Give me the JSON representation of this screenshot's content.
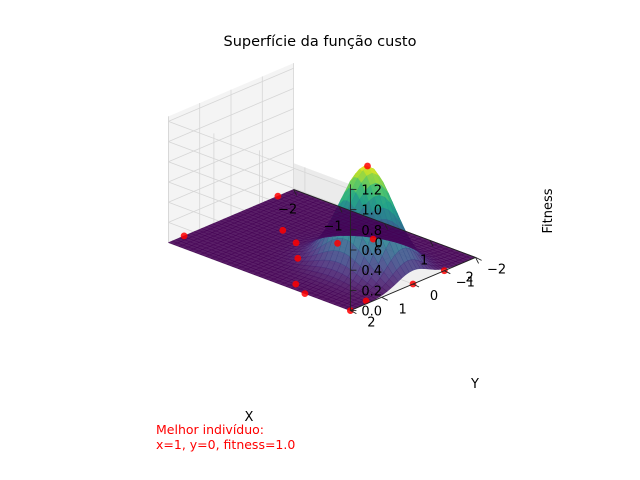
{
  "chart_data": {
    "type": "surface3d",
    "title": "Superfície da função custo",
    "xlabel": "X",
    "ylabel": "Y",
    "zlabel": "Fitness",
    "xlim": [
      -2,
      2
    ],
    "ylim": [
      -2,
      2
    ],
    "zlim": [
      0,
      1.2
    ],
    "x_ticks": [
      "−2",
      "−1",
      "0",
      "1",
      "2"
    ],
    "y_ticks": [
      "−2",
      "−1",
      "0",
      "1",
      "2"
    ],
    "z_ticks": [
      "0.0",
      "0.2",
      "0.4",
      "0.6",
      "0.8",
      "1.0",
      "1.2"
    ],
    "surface": {
      "function": "gaussian peak",
      "peak": {
        "x": 1,
        "y": 0,
        "z": 1.0
      },
      "colormap": "viridis",
      "color_low": "#440154",
      "color_high": "#fde725"
    },
    "population_points": [
      {
        "x": 1,
        "y": 0,
        "z": 1.0
      },
      {
        "x": 0.5,
        "y": 1.5,
        "z": 0.2
      },
      {
        "x": 2.0,
        "y": 1.5,
        "z": 0.03
      },
      {
        "x": 2.0,
        "y": 2.0,
        "z": 0.0
      },
      {
        "x": 0.8,
        "y": 2.0,
        "z": 0.06
      },
      {
        "x": -2.0,
        "y": 1.5,
        "z": 0.0
      },
      {
        "x": -2.0,
        "y": -1.5,
        "z": 0.0
      },
      {
        "x": 0.3,
        "y": -1.2,
        "z": 0.0
      },
      {
        "x": -1.0,
        "y": -0.2,
        "z": 0.0
      },
      {
        "x": -0.5,
        "y": 0.1,
        "z": 0.0
      },
      {
        "x": 0.0,
        "y": -0.5,
        "z": 0.0
      },
      {
        "x": 1.0,
        "y": 2.0,
        "z": 0.0
      },
      {
        "x": 2.0,
        "y": 0.0,
        "z": 0.0
      },
      {
        "x": 2.0,
        "y": -1.0,
        "z": 0.0
      }
    ],
    "point_color": "#ff0000",
    "annotation": {
      "line1": "Melhor indivíduo:",
      "line2": "x=1, y=0, fitness=1.0",
      "color": "#ff0000"
    }
  }
}
